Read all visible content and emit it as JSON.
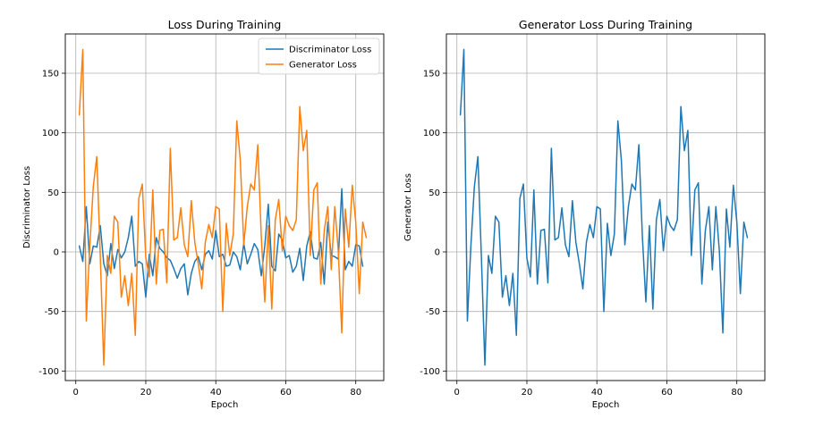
{
  "chart_data": [
    {
      "type": "line",
      "title": "Loss During Training",
      "xlabel": "Epoch",
      "ylabel": "Discriminator Loss",
      "xlim": [
        -3,
        88
      ],
      "ylim": [
        -108,
        183
      ],
      "xticks": [
        0,
        20,
        40,
        60,
        80
      ],
      "yticks": [
        -100,
        -50,
        0,
        50,
        100,
        150
      ],
      "grid": true,
      "legend": "top-right",
      "x_start": 1,
      "series": [
        {
          "name": "Discriminator Loss",
          "color": "#1f77b4",
          "values": [
            5,
            -8,
            38,
            -10,
            5,
            4,
            22,
            -10,
            -20,
            7,
            -14,
            2,
            -5,
            0,
            12,
            30,
            -12,
            -8,
            -10,
            -38,
            -2,
            -20,
            12,
            3,
            0,
            -5,
            -7,
            -14,
            -22,
            -14,
            -10,
            -36,
            -18,
            -8,
            -4,
            -15,
            -2,
            1,
            -6,
            18,
            -4,
            -2,
            -12,
            -11,
            0,
            -4,
            -15,
            7,
            -10,
            -2,
            7,
            2,
            -20,
            5,
            40,
            -12,
            -16,
            15,
            10,
            -5,
            -3,
            -17,
            -12,
            3,
            -24,
            5,
            17,
            -5,
            -6,
            8,
            -27,
            25,
            -3,
            -4,
            -6,
            53,
            -15,
            -8,
            -12,
            6,
            5,
            -12
          ]
        },
        {
          "name": "Generator Loss",
          "color": "#ff7f0e",
          "values": [
            115,
            170,
            -58,
            5,
            55,
            80,
            -4,
            -95,
            -3,
            -18,
            30,
            25,
            -38,
            -20,
            -45,
            -18,
            -70,
            45,
            57,
            -5,
            -21,
            52,
            -27,
            18,
            19,
            -26,
            87,
            10,
            12,
            37,
            6,
            -4,
            43,
            8,
            -10,
            -31,
            8,
            23,
            12,
            38,
            36,
            -50,
            24,
            -3,
            15,
            110,
            77,
            6,
            38,
            57,
            52,
            90,
            13,
            -42,
            22,
            -48,
            27,
            44,
            1,
            30,
            22,
            18,
            27,
            122,
            85,
            102,
            -3,
            52,
            58,
            -27,
            18,
            38,
            -15,
            38,
            1,
            -68,
            36,
            4,
            56,
            25,
            -35,
            25,
            12
          ]
        }
      ]
    },
    {
      "type": "line",
      "title": "Generator Loss During Training",
      "xlabel": "Epoch",
      "ylabel": "Generator Loss",
      "xlim": [
        -3,
        88
      ],
      "ylim": [
        -108,
        183
      ],
      "xticks": [
        0,
        20,
        40,
        60,
        80
      ],
      "yticks": [
        -100,
        -50,
        0,
        50,
        100,
        150
      ],
      "grid": true,
      "x_start": 1,
      "series": [
        {
          "name": "",
          "color": "#1f77b4",
          "values": [
            115,
            170,
            -58,
            5,
            55,
            80,
            -4,
            -95,
            -3,
            -18,
            30,
            25,
            -38,
            -20,
            -45,
            -18,
            -70,
            45,
            57,
            -5,
            -21,
            52,
            -27,
            18,
            19,
            -26,
            87,
            10,
            12,
            37,
            6,
            -4,
            43,
            8,
            -10,
            -31,
            8,
            23,
            12,
            38,
            36,
            -50,
            24,
            -3,
            15,
            110,
            77,
            6,
            38,
            57,
            52,
            90,
            13,
            -42,
            22,
            -48,
            27,
            44,
            1,
            30,
            22,
            18,
            27,
            122,
            85,
            102,
            -3,
            52,
            58,
            -27,
            18,
            38,
            -15,
            38,
            1,
            -68,
            36,
            4,
            56,
            25,
            -35,
            25,
            12
          ]
        }
      ]
    }
  ]
}
